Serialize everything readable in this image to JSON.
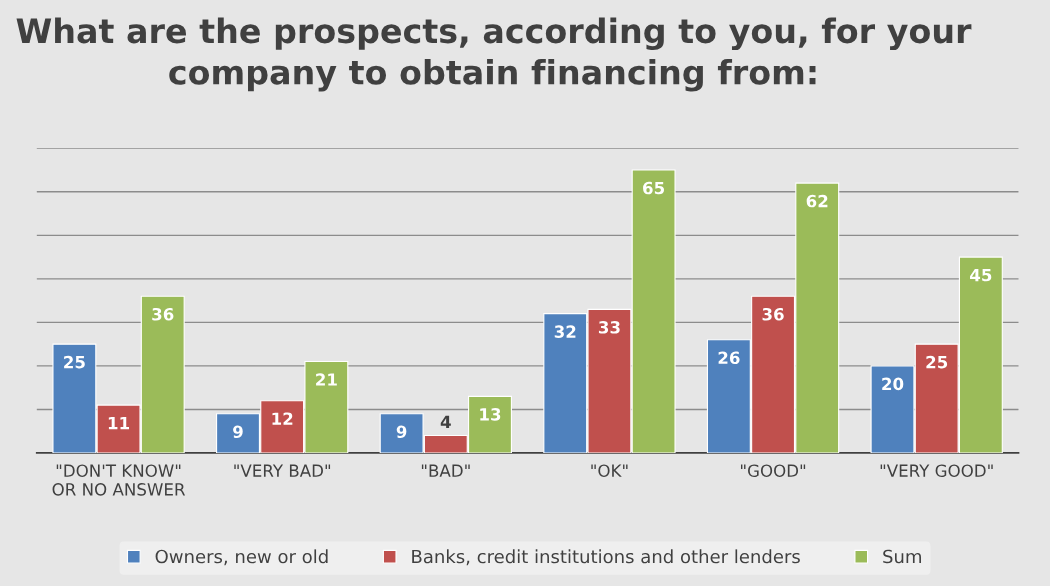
{
  "chart_data": {
    "type": "bar",
    "title": "What are the prospects, according to you, for your company to obtain financing from:",
    "categories": [
      "\"DON'T KNOW\"\nOR NO ANSWER",
      "\"VERY BAD\"",
      "\"BAD\"",
      "\"OK\"",
      "\"GOOD\"",
      "\"VERY GOOD\""
    ],
    "series": [
      {
        "name": "Owners, new or old",
        "color": "#4f81bd",
        "values": [
          25,
          9,
          9,
          32,
          26,
          20
        ]
      },
      {
        "name": "Banks, credit institutions and other lenders",
        "color": "#c0504d",
        "values": [
          11,
          12,
          4,
          33,
          36,
          25
        ]
      },
      {
        "name": "Sum",
        "color": "#9bbb59",
        "values": [
          36,
          21,
          13,
          65,
          62,
          45
        ]
      }
    ],
    "ylim": [
      0,
      70
    ],
    "yticks": [
      {
        "value": 0,
        "label": null
      },
      {
        "value": 10,
        "label": null
      },
      {
        "value": 20,
        "label": null
      },
      {
        "value": 30,
        "label": null
      },
      {
        "value": 40,
        "label": null
      },
      {
        "value": 50,
        "label": null
      },
      {
        "value": 60,
        "label": null
      },
      {
        "value": 70,
        "label": null
      }
    ],
    "grid": "y",
    "legend": "bottom",
    "data_labels": true,
    "tick_labels": "x"
  }
}
